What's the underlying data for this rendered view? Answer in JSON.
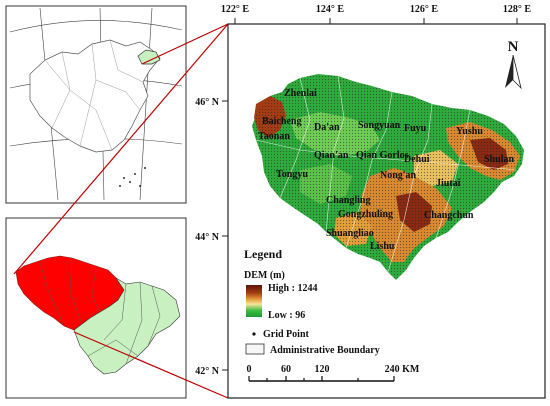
{
  "lon_labels": [
    "122° E",
    "124° E",
    "126° E",
    "128° E"
  ],
  "lat_labels": [
    "46° N",
    "44° N",
    "42° N"
  ],
  "north_arrow_label": "N",
  "places": [
    "Zhenlai",
    "Baicheng",
    "Taonan",
    "Da'an",
    "Songyuan",
    "Fuyu",
    "Yushu",
    "Qian'an",
    "Qian Gorlos",
    "Dehui",
    "Tongyu",
    "Nong'an",
    "Jiutai",
    "Shulan",
    "Changling",
    "Gongzhuling",
    "Changchun",
    "Shuangliao",
    "Lishu"
  ],
  "legend": {
    "title": "Legend",
    "dem_title": "DEM (m)",
    "dem_high": "High : 1244",
    "dem_low": "Low : 96",
    "grid_point": "Grid Point",
    "admin_boundary": "Administrative Boundary"
  },
  "scale_bar": {
    "ticks": [
      "0",
      "60",
      "120",
      "240 KM"
    ]
  },
  "colors": {
    "highlight_red": "#ff0000",
    "light_green": "#c8f0c0",
    "dem_high": "#7a1f10",
    "dem_mid": "#d98a30",
    "dem_low": "#1fae3a"
  }
}
